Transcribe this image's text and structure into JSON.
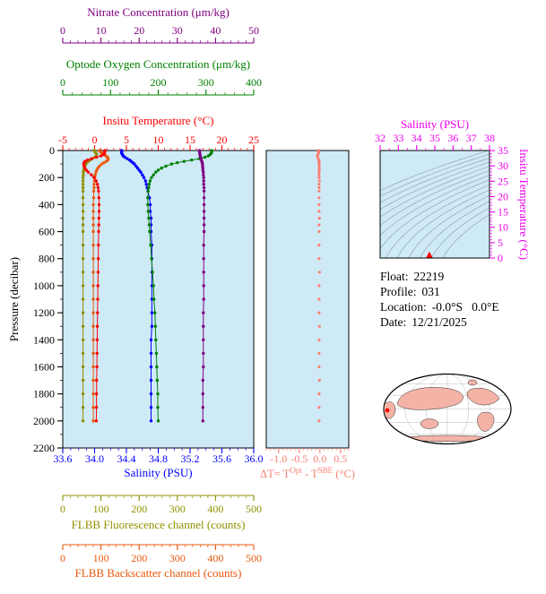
{
  "figure": {
    "bg": "#FFFFFF",
    "plot_bg": "#CFEAF7"
  },
  "titles": {
    "nitrate": "Nitrate Concentration (μm/kg)",
    "oxygen": "Optode Oxygen Concentration (μm/kg)",
    "temperature": "Insitu Temperature (°C)",
    "pressure": "Pressure (decibar)",
    "salinity": "Salinity (PSU)",
    "fluorescence": "FLBB Fluorescence channel (counts)",
    "backscatter": "FLBB Backscatter channel (counts)",
    "delta_prefix": "ΔT= T",
    "delta_sup1": "Opt",
    "delta_mid": " - T",
    "delta_sup2": "SBE",
    "delta_suffix": " (°C)",
    "ts_top": "Salinity (PSU)",
    "ts_right": "Insitu Temperature (°C)"
  },
  "info": {
    "float_label": "Float:",
    "float_value": "22219",
    "profile_label": "Profile:",
    "profile_value": "031",
    "location_label": "Location:",
    "location_value": "-0.0°S   0.0°E",
    "date_label": "Date:",
    "date_value": "12/21/2025"
  },
  "axes": {
    "nitrate": {
      "min": 0,
      "max": 50,
      "ticks": [
        0,
        10,
        20,
        30,
        40,
        50
      ],
      "labels": [
        "0",
        "10",
        "20",
        "30",
        "40",
        "50"
      ],
      "minor": 2,
      "color": "#800080"
    },
    "oxygen": {
      "min": 0,
      "max": 400,
      "ticks": [
        0,
        100,
        200,
        300,
        400
      ],
      "labels": [
        "0",
        "100",
        "200",
        "300",
        "400"
      ],
      "minor": 20,
      "color": "#008000"
    },
    "temperature": {
      "min": -5,
      "max": 25,
      "ticks": [
        -5,
        0,
        5,
        10,
        15,
        20,
        25
      ],
      "labels": [
        "-5",
        "0",
        "5",
        "10",
        "15",
        "20",
        "25"
      ],
      "minor": 1,
      "color": "#FF0000"
    },
    "salinity": {
      "min": 33.6,
      "max": 36.0,
      "ticks": [
        33.6,
        34.0,
        34.4,
        34.8,
        35.2,
        35.6,
        36.0
      ],
      "labels": [
        "33.6",
        "34.0",
        "34.4",
        "34.8",
        "35.2",
        "35.6",
        "36.0"
      ],
      "minor": 0.1,
      "color": "#0000FF"
    },
    "pressure": {
      "min": 0,
      "max": 2200,
      "ticks": [
        0,
        200,
        400,
        600,
        800,
        1000,
        1200,
        1400,
        1600,
        1800,
        2000,
        2200
      ],
      "labels": [
        "0",
        "200",
        "400",
        "600",
        "800",
        "1000",
        "1200",
        "1400",
        "1600",
        "1800",
        "2000",
        "2200"
      ],
      "minor": 100,
      "color": "#000000"
    },
    "fluorescence": {
      "min": 0,
      "max": 500,
      "ticks": [
        0,
        100,
        200,
        300,
        400,
        500
      ],
      "labels": [
        "0",
        "100",
        "200",
        "300",
        "400",
        "500"
      ],
      "minor": 20,
      "color": "#909000"
    },
    "backscatter": {
      "min": 0,
      "max": 500,
      "ticks": [
        0,
        100,
        200,
        300,
        400,
        500
      ],
      "labels": [
        "0",
        "100",
        "200",
        "300",
        "400",
        "500"
      ],
      "minor": 20,
      "color": "#E8580C"
    },
    "delta_t": {
      "min": -1.3,
      "max": 0.7,
      "ticks": [
        -1.0,
        -0.5,
        0.0,
        0.5
      ],
      "labels": [
        "-1.0",
        "-0.5",
        "0.0",
        "0.5"
      ],
      "minor": 0.1,
      "color": "#FA8072"
    },
    "ts_salinity": {
      "min": 32,
      "max": 38,
      "ticks": [
        32,
        33,
        34,
        35,
        36,
        37,
        38
      ],
      "labels": [
        "32",
        "33",
        "34",
        "35",
        "36",
        "37",
        "38"
      ],
      "minor": 0.5,
      "color": "#EE00EE"
    },
    "ts_temperature": {
      "min": 0,
      "max": 35,
      "ticks": [
        0,
        5,
        10,
        15,
        20,
        25,
        30,
        35
      ],
      "labels": [
        "0",
        "5",
        "10",
        "15",
        "20",
        "25",
        "30",
        "35"
      ],
      "minor": 1,
      "color": "#EE00EE"
    }
  },
  "chart_data": [
    {
      "id": "depth_profiles",
      "type": "scatter",
      "ylabel": "Pressure (decibar)",
      "ylim": [
        0,
        2200
      ],
      "pressure": [
        0,
        10,
        20,
        30,
        40,
        50,
        60,
        70,
        80,
        90,
        100,
        115,
        130,
        145,
        160,
        180,
        200,
        225,
        250,
        275,
        300,
        350,
        400,
        450,
        500,
        550,
        600,
        700,
        800,
        900,
        1000,
        1100,
        1200,
        1300,
        1400,
        1500,
        1600,
        1700,
        1800,
        1900,
        2000
      ],
      "series": [
        {
          "name": "FLBB Fluorescence channel (counts)",
          "axis": "fluorescence",
          "data_name": "fluorescence-profile",
          "values": [
            82,
            84,
            87,
            89,
            88,
            84,
            78,
            72,
            67,
            63,
            60,
            58,
            56,
            55,
            54,
            54,
            53,
            53,
            53,
            53,
            53,
            53,
            53,
            53,
            53,
            53,
            53,
            53,
            53,
            53,
            53,
            53,
            53,
            53,
            53,
            53,
            53,
            53,
            53,
            53,
            53
          ]
        },
        {
          "name": "FLBB Backscatter channel (counts)",
          "axis": "backscatter",
          "data_name": "backscatter-profile",
          "values": [
            96,
            99,
            103,
            108,
            113,
            117,
            119,
            118,
            114,
            108,
            102,
            96,
            92,
            89,
            87,
            85,
            84,
            83,
            82,
            82,
            81,
            81,
            80,
            80,
            80,
            80,
            80,
            80,
            80,
            80,
            80,
            80,
            80,
            80,
            80,
            80,
            80,
            80,
            80,
            80,
            80
          ]
        },
        {
          "name": "Insitu Temperature (°C)",
          "axis": "temperature",
          "data_name": "temperature-profile",
          "values": [
            1.6,
            1.6,
            1.55,
            1.4,
            1.0,
            0.3,
            -0.5,
            -1.1,
            -1.5,
            -1.65,
            -1.7,
            -1.65,
            -1.5,
            -1.3,
            -1.0,
            -0.5,
            -0.1,
            0.25,
            0.45,
            0.55,
            0.62,
            0.68,
            0.7,
            0.7,
            0.68,
            0.66,
            0.64,
            0.61,
            0.58,
            0.55,
            0.52,
            0.49,
            0.46,
            0.43,
            0.41,
            0.38,
            0.36,
            0.33,
            0.31,
            0.29,
            0.27
          ]
        },
        {
          "name": "Salinity (PSU)",
          "axis": "salinity",
          "data_name": "salinity-profile",
          "values": [
            34.34,
            34.34,
            34.34,
            34.35,
            34.36,
            34.38,
            34.41,
            34.44,
            34.46,
            34.48,
            34.5,
            34.52,
            34.54,
            34.56,
            34.58,
            34.6,
            34.62,
            34.64,
            34.65,
            34.66,
            34.67,
            34.69,
            34.7,
            34.7,
            34.71,
            34.71,
            34.71,
            34.72,
            34.72,
            34.72,
            34.72,
            34.72,
            34.72,
            34.72,
            34.71,
            34.71,
            34.71,
            34.71,
            34.71,
            34.71,
            34.71
          ]
        },
        {
          "name": "Optode Oxygen Concentration (μm/kg)",
          "axis": "oxygen",
          "data_name": "oxygen-profile",
          "values": [
            312,
            312,
            311,
            309,
            305,
            298,
            286,
            270,
            254,
            240,
            228,
            216,
            207,
            200,
            195,
            190,
            186,
            183,
            181,
            180,
            179,
            178,
            178,
            179,
            180,
            181,
            182,
            184,
            186,
            188,
            190,
            191,
            193,
            194,
            195,
            196,
            197,
            198,
            199,
            199,
            200
          ]
        },
        {
          "name": "Nitrate Concentration (μm/kg)",
          "axis": "nitrate",
          "data_name": "nitrate-profile",
          "values": [
            35.8,
            35.8,
            35.9,
            35.9,
            36.0,
            36.1,
            36.2,
            36.3,
            36.4,
            36.5,
            36.6,
            36.6,
            36.7,
            36.7,
            36.8,
            36.8,
            36.9,
            36.9,
            36.9,
            37.0,
            37.0,
            37.0,
            37.0,
            37.0,
            37.0,
            37.0,
            37.0,
            36.9,
            36.9,
            36.9,
            36.9,
            36.9,
            36.8,
            36.8,
            36.8,
            36.8,
            36.8,
            36.7,
            36.7,
            36.7,
            36.7
          ]
        }
      ]
    },
    {
      "id": "delta_t_profile",
      "type": "scatter",
      "xlabel": "ΔT= T^Opt - T^SBE (°C)",
      "xlim": [
        -1.3,
        0.7
      ],
      "values": [
        -0.04,
        -0.03,
        -0.03,
        -0.05,
        -0.06,
        -0.05,
        -0.04,
        -0.03,
        -0.02,
        -0.02,
        -0.02,
        -0.02,
        -0.01,
        -0.02,
        -0.02,
        -0.02,
        -0.02,
        -0.01,
        -0.02,
        -0.02,
        -0.02,
        -0.02,
        -0.02,
        -0.02,
        -0.01,
        -0.02,
        -0.02,
        -0.02,
        -0.02,
        -0.01,
        -0.02,
        -0.02,
        -0.02,
        -0.01,
        -0.02,
        -0.02,
        -0.02,
        -0.01,
        -0.02,
        -0.02,
        -0.02
      ]
    },
    {
      "id": "ts_diagram",
      "type": "scatter",
      "xlabel": "Salinity (PSU)",
      "ylabel": "Insitu Temperature (°C)",
      "xlim": [
        32,
        38
      ],
      "ylim": [
        0,
        35
      ],
      "contour_color": "#8899AA",
      "sigma_levels": [
        22,
        22.5,
        23,
        23.5,
        24,
        24.5,
        25,
        25.5,
        26,
        26.5,
        27,
        27.5,
        28,
        28.5
      ],
      "marker": {
        "salinity": 34.7,
        "temperature": 0.8,
        "color": "#FF0000",
        "shape": "triangle"
      }
    }
  ]
}
